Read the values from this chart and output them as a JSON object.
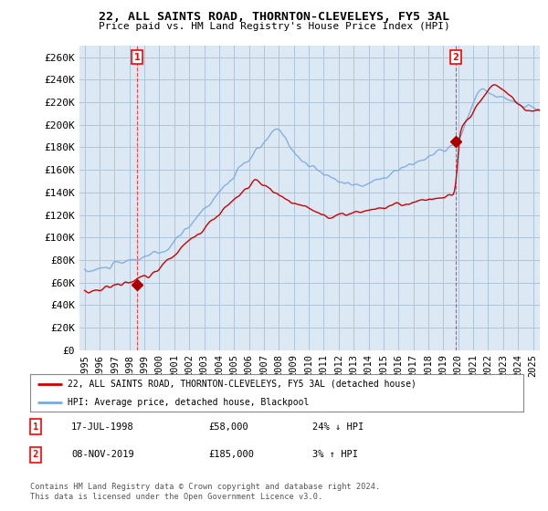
{
  "title1": "22, ALL SAINTS ROAD, THORNTON-CLEVELEYS, FY5 3AL",
  "title2": "Price paid vs. HM Land Registry's House Price Index (HPI)",
  "ylabel_ticks": [
    "£0",
    "£20K",
    "£40K",
    "£60K",
    "£80K",
    "£100K",
    "£120K",
    "£140K",
    "£160K",
    "£180K",
    "£200K",
    "£220K",
    "£240K",
    "£260K"
  ],
  "ytick_vals": [
    0,
    20000,
    40000,
    60000,
    80000,
    100000,
    120000,
    140000,
    160000,
    180000,
    200000,
    220000,
    240000,
    260000
  ],
  "sale1_date": "17-JUL-1998",
  "sale1_price": 58000,
  "sale1_pct": "24% ↓ HPI",
  "sale2_date": "08-NOV-2019",
  "sale2_price": 185000,
  "sale2_pct": "3% ↑ HPI",
  "legend_line1": "22, ALL SAINTS ROAD, THORNTON-CLEVELEYS, FY5 3AL (detached house)",
  "legend_line2": "HPI: Average price, detached house, Blackpool",
  "footnote": "Contains HM Land Registry data © Crown copyright and database right 2024.\nThis data is licensed under the Open Government Licence v3.0.",
  "line_color_red": "#cc0000",
  "line_color_blue": "#7aaadd",
  "bg_color": "#ffffff",
  "chart_bg_color": "#dde8f5",
  "grid_color": "#b0c4d8",
  "sale_marker_color": "#aa0000"
}
